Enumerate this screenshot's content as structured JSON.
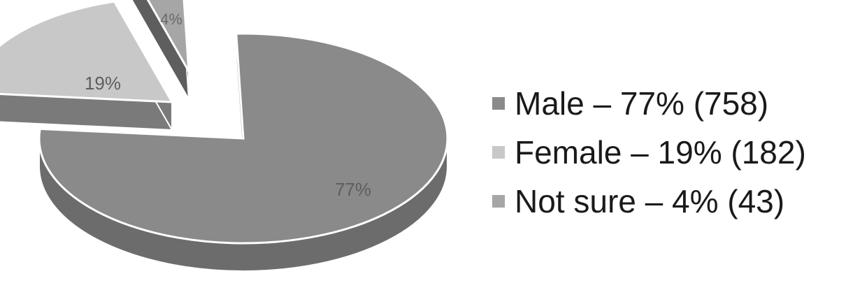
{
  "chart_data": {
    "type": "pie",
    "style": "3d-exploded",
    "categories": [
      "Male",
      "Female",
      "Not sure"
    ],
    "values": [
      77,
      19,
      4
    ],
    "counts": [
      758,
      182,
      43
    ],
    "data_labels": [
      "77%",
      "19%",
      "4%"
    ],
    "legend": [
      "Male – 77% (758)",
      "Female – 19% (182)",
      "Not sure – 4% (43)"
    ],
    "legend_position": "right",
    "colors": [
      "#8a8a8a",
      "#c8c8c8",
      "#a6a6a6"
    ],
    "side_colors": [
      "#6c6c6c",
      "#7a7a7a",
      "#5e5e5e"
    ]
  }
}
